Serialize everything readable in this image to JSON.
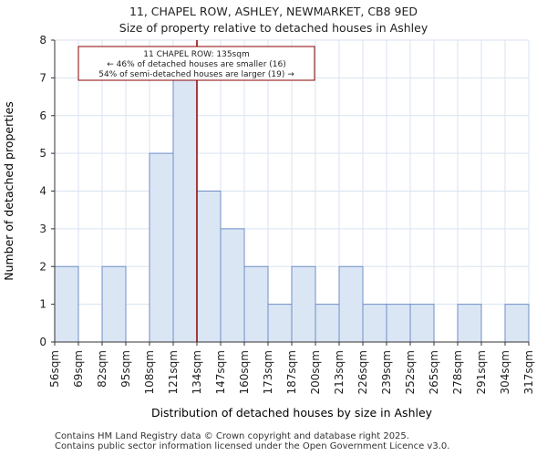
{
  "header": {
    "title_line1": "11, CHAPEL ROW, ASHLEY, NEWMARKET, CB8 9ED",
    "title_line2": "Size of property relative to detached houses in Ashley"
  },
  "chart_data": {
    "type": "bar",
    "title": "Size of property relative to detached houses in Ashley",
    "xlabel": "Distribution of detached houses by size in Ashley",
    "ylabel": "Number of detached properties",
    "bin_edges": [
      "56sqm",
      "69sqm",
      "82sqm",
      "95sqm",
      "108sqm",
      "121sqm",
      "134sqm",
      "147sqm",
      "160sqm",
      "173sqm",
      "187sqm",
      "200sqm",
      "213sqm",
      "226sqm",
      "239sqm",
      "252sqm",
      "265sqm",
      "278sqm",
      "291sqm",
      "304sqm",
      "317sqm"
    ],
    "values": [
      2,
      0,
      2,
      0,
      5,
      7,
      4,
      3,
      2,
      1,
      2,
      1,
      2,
      1,
      1,
      1,
      0,
      1,
      0,
      1
    ],
    "ylim": [
      0,
      8
    ],
    "yticks": [
      "0",
      "1",
      "2",
      "3",
      "4",
      "5",
      "6",
      "7",
      "8"
    ],
    "marker": {
      "value_bin_position": 6.0,
      "color": "#8b0000"
    },
    "annotation": {
      "line1": "11 CHAPEL ROW: 135sqm",
      "line2": "← 46% of detached houses are smaller (16)",
      "line3": "54% of semi-detached houses are larger (19) →"
    },
    "bar_fill": "#dbe6f5",
    "bar_stroke": "#6f8fc7",
    "grid_color": "#d9e3f1"
  },
  "footer": {
    "line1": "Contains HM Land Registry data © Crown copyright and database right 2025.",
    "line2": "Contains public sector information licensed under the Open Government Licence v3.0."
  }
}
